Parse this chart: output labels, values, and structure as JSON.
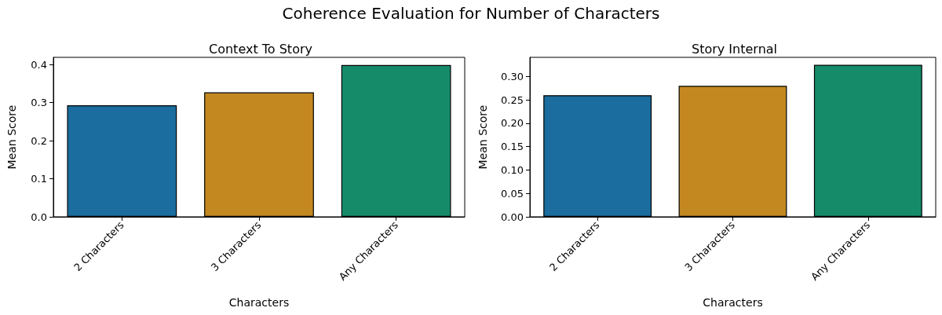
{
  "chart_data": [
    {
      "type": "bar",
      "title": "Coherence Evaluation for Number of Characters",
      "subtitle": "Context To Story",
      "xlabel": "Characters",
      "ylabel": "Mean Score",
      "categories": [
        "2 Characters",
        "3 Characters",
        "Any Characters"
      ],
      "values": [
        0.293,
        0.327,
        0.399
      ],
      "colors": [
        "#1a6d9e",
        "#c38820",
        "#168b6a"
      ],
      "ylim": [
        0,
        0.419
      ],
      "yticks": [
        {
          "value": 0,
          "label": "0.0"
        },
        0.1,
        0.2,
        0.3,
        0.4
      ],
      "grid": false
    },
    {
      "type": "bar",
      "subtitle": "Story Internal",
      "xlabel": "Characters",
      "ylabel": "Mean Score",
      "categories": [
        "2 Characters",
        "3 Characters",
        "Any Characters"
      ],
      "values": [
        0.26,
        0.28,
        0.325
      ],
      "colors": [
        "#1a6d9e",
        "#c38820",
        "#168b6a"
      ],
      "ylim": [
        0,
        0.341
      ],
      "yticks": [
        {
          "value": 0,
          "label": "0.00"
        },
        0.05,
        {
          "value": 0.1,
          "label": "0.10"
        },
        0.15,
        {
          "value": 0.2,
          "label": "0.20"
        },
        0.25,
        {
          "value": 0.3,
          "label": "0.30"
        }
      ],
      "grid": false
    }
  ]
}
